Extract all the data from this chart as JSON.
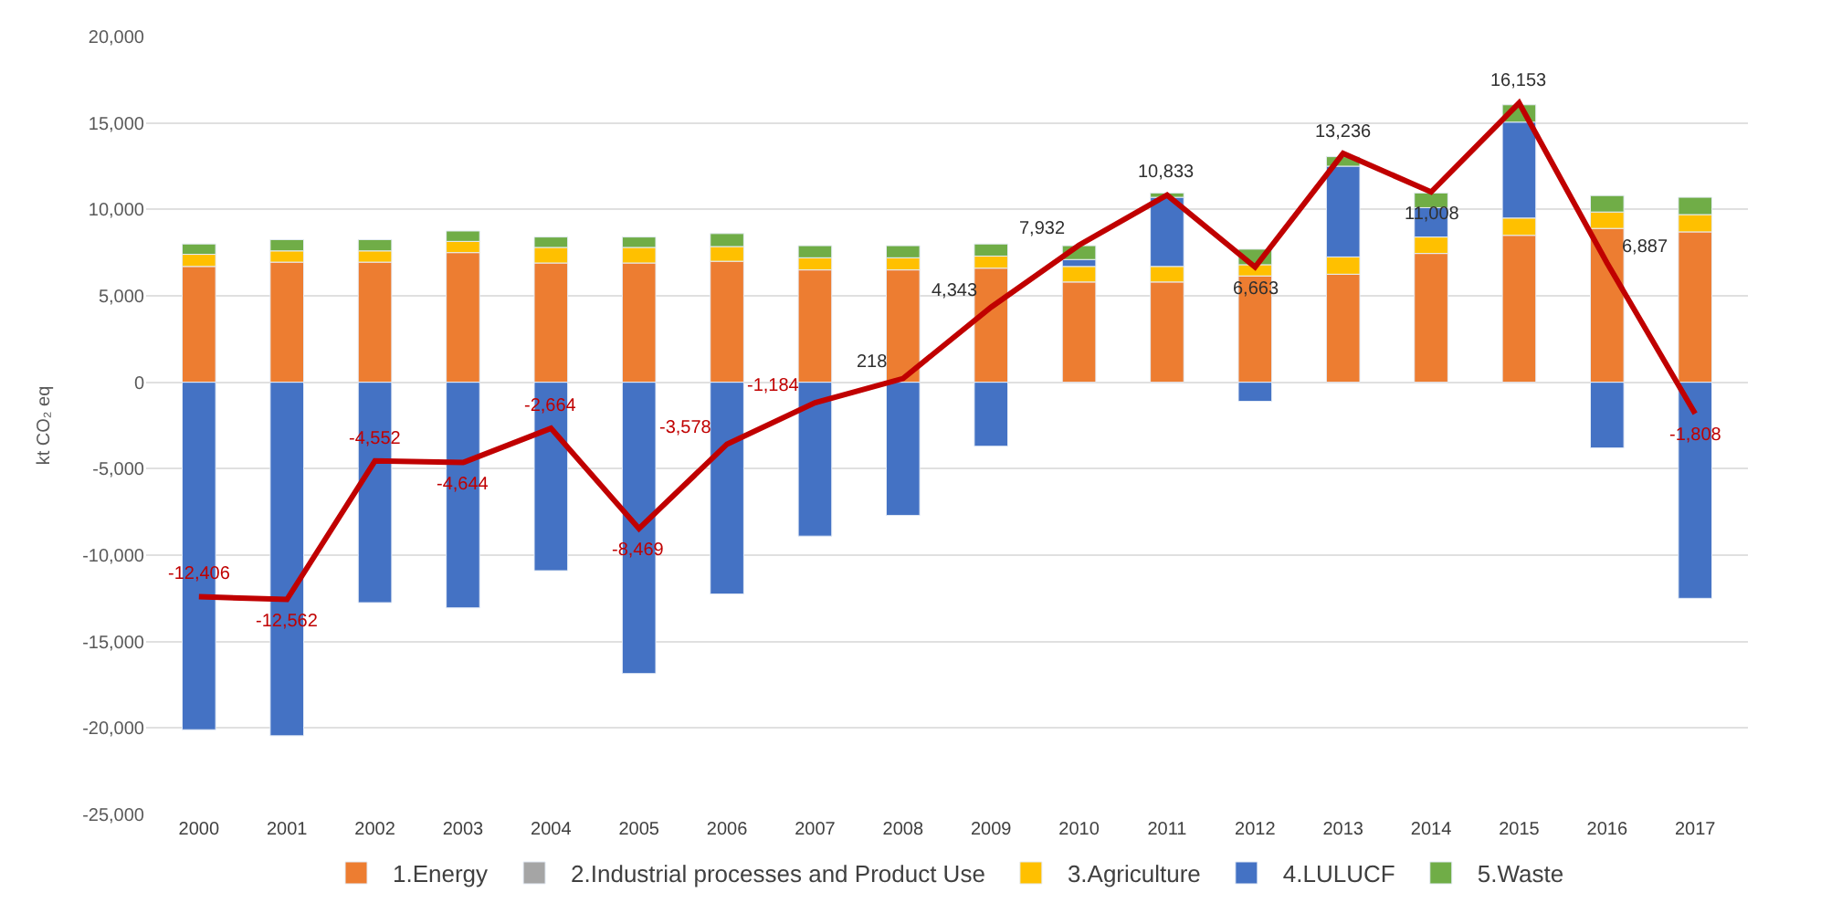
{
  "chart_data": {
    "type": "bar",
    "stacked": true,
    "ylabel": "kt CO₂ eq",
    "categories": [
      "2000",
      "2001",
      "2002",
      "2003",
      "2004",
      "2005",
      "2006",
      "2007",
      "2008",
      "2009",
      "2010",
      "2011",
      "2012",
      "2013",
      "2014",
      "2015",
      "2016",
      "2017"
    ],
    "series": [
      {
        "name": "1.Energy",
        "color": "#ed7d31",
        "values": [
          6700,
          6950,
          6950,
          7500,
          6900,
          6900,
          7000,
          6500,
          6500,
          6600,
          5800,
          5800,
          6150,
          6250,
          7450,
          8500,
          8900,
          8700
        ]
      },
      {
        "name": "2.Industrial processes and Product Use",
        "color": "#a5a5a5",
        "values": [
          null,
          null,
          null,
          null,
          null,
          null,
          null,
          null,
          null,
          null,
          null,
          null,
          null,
          null,
          null,
          null,
          null,
          null
        ]
      },
      {
        "name": "3.Agriculture",
        "color": "#ffc000",
        "values": [
          700,
          650,
          650,
          650,
          900,
          900,
          850,
          700,
          700,
          700,
          900,
          900,
          650,
          1000,
          950,
          1000,
          950,
          1000
        ]
      },
      {
        "name": "4.LULUCF",
        "color": "#4472c4",
        "values": [
          -20100,
          -20450,
          -12750,
          -13050,
          -10900,
          -16850,
          -12250,
          -8900,
          -7700,
          -3700,
          400,
          4000,
          -1100,
          5250,
          1700,
          5550,
          -3800,
          -12500
        ]
      },
      {
        "name": "5.Waste",
        "color": "#70ad47",
        "values": [
          600,
          650,
          650,
          600,
          600,
          600,
          750,
          700,
          700,
          700,
          800,
          250,
          900,
          550,
          850,
          1000,
          950,
          1000
        ]
      },
      {
        "type": "line",
        "color": "#c00000",
        "values": [
          -12406,
          -12562,
          -4552,
          -4644,
          -2664,
          -8469,
          -3578,
          -1184,
          218,
          4343,
          7932,
          10833,
          6663,
          13236,
          11008,
          16153,
          6887,
          -1808
        ],
        "value_labels": [
          "-12,406",
          "-12,562",
          "-4,552",
          "-4,644",
          "-2,664",
          "-8,469",
          "-3,578",
          "-1,184",
          "218",
          "4,343",
          "7,932",
          "10,833",
          "6,663",
          "13,236",
          "11,008",
          "16,153",
          "6,887",
          "-1,808"
        ]
      }
    ],
    "ylim": [
      -25000,
      20000
    ],
    "yticks": [
      {
        "value": 20000,
        "label": "20,000"
      },
      {
        "value": 15000,
        "label": "15,000"
      },
      {
        "value": 10000,
        "label": "10,000"
      },
      {
        "value": 5000,
        "label": "5,000"
      },
      0,
      {
        "value": -5000,
        "label": "-5,000"
      },
      {
        "value": -10000,
        "label": "-10,000"
      },
      {
        "value": -15000,
        "label": "-15,000"
      },
      {
        "value": -20000,
        "label": "-20,000"
      },
      {
        "value": -25000,
        "label": "-25,000"
      }
    ],
    "grid": "y",
    "legend": "bottom"
  }
}
